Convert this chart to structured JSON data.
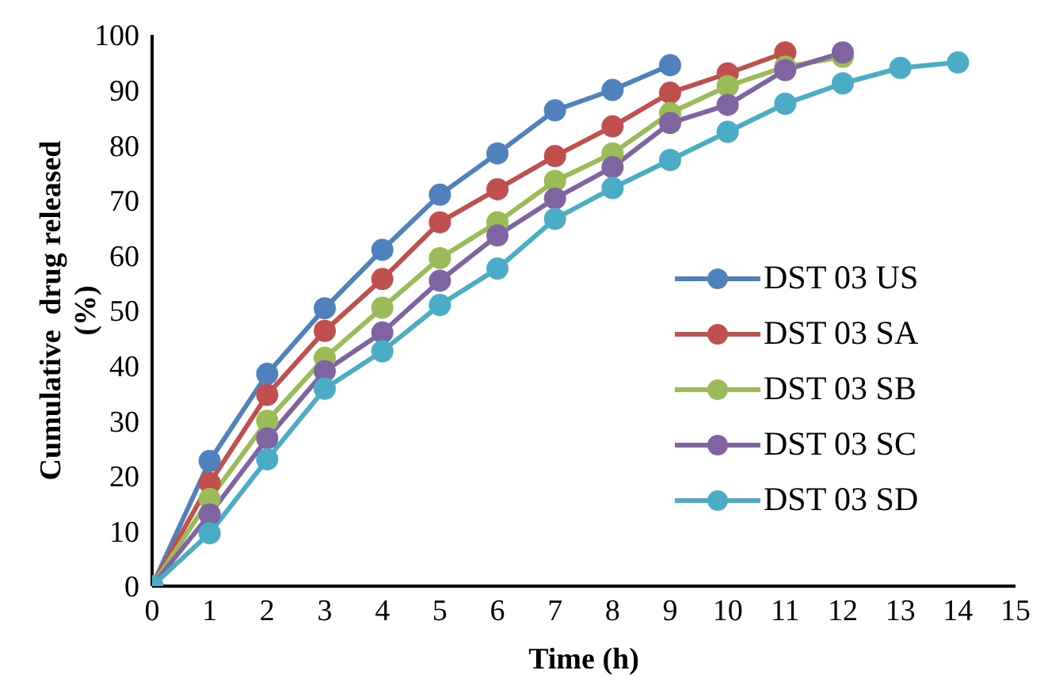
{
  "chart_data": {
    "type": "line",
    "xlabel": "Time (h)",
    "ylabel": "Cumulative  drug released (%)",
    "x": [
      0,
      1,
      2,
      3,
      4,
      5,
      6,
      7,
      8,
      9,
      10,
      11,
      12,
      13,
      14
    ],
    "series": [
      {
        "name": "DST 03 US",
        "color": "#4f81bd",
        "values": [
          0,
          22.7,
          38.5,
          50.4,
          61,
          71,
          78.5,
          86.3,
          90,
          94.5,
          null,
          null,
          null,
          null,
          null
        ]
      },
      {
        "name": "DST 03 SA",
        "color": "#c0504d",
        "values": [
          0,
          18.7,
          34.7,
          46.3,
          55.7,
          66,
          72,
          78,
          83.4,
          89.5,
          93,
          96.8,
          null,
          null,
          null
        ]
      },
      {
        "name": "DST 03 SB",
        "color": "#9bbb59",
        "values": [
          0,
          15.8,
          30,
          41.4,
          50.5,
          59.5,
          66,
          73.5,
          78.5,
          85.8,
          90.7,
          94.2,
          96,
          null,
          null
        ]
      },
      {
        "name": "DST 03 SC",
        "color": "#8064a2",
        "values": [
          0,
          13,
          26.8,
          39,
          46,
          55.4,
          63.6,
          70.3,
          76,
          84,
          87.3,
          93.6,
          96.8,
          null,
          null
        ]
      },
      {
        "name": "DST 03 SD",
        "color": "#4bacc6",
        "values": [
          0,
          9.6,
          23,
          35.8,
          42.6,
          51,
          57.6,
          66.6,
          72.2,
          77.3,
          82.4,
          87.5,
          91.2,
          94,
          95
        ]
      }
    ],
    "xlim": [
      0,
      15
    ],
    "xticks": [
      0,
      1,
      2,
      3,
      4,
      5,
      6,
      7,
      8,
      9,
      10,
      11,
      12,
      13,
      14,
      15
    ],
    "ylim": [
      0,
      100
    ],
    "yticks": [
      0,
      10,
      20,
      30,
      40,
      50,
      60,
      70,
      80,
      90,
      100
    ],
    "grid": false,
    "legend": "right",
    "marker": "circle",
    "line_style": "solid"
  }
}
